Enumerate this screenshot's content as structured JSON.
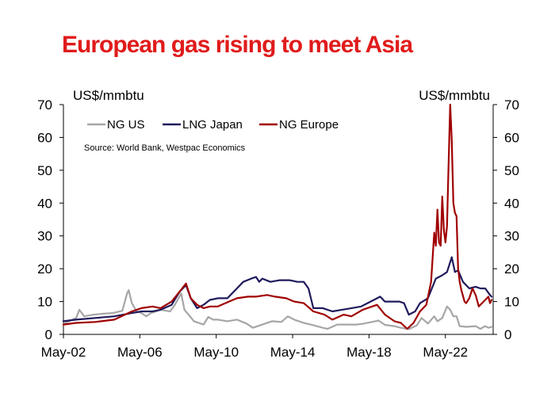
{
  "chart_data": {
    "type": "line",
    "title": "European gas rising to meet Asia",
    "ylabel_left": "US$/mmbtu",
    "ylabel_right": "US$/mmbtu",
    "source": "Source: World Bank, Westpac Economics",
    "ylim": [
      0,
      70
    ],
    "yticks": [
      0,
      10,
      20,
      30,
      40,
      50,
      60,
      70
    ],
    "xlim": [
      "2002-05",
      "2024-11"
    ],
    "x_tick_labels": [
      "May-02",
      "May-06",
      "May-10",
      "May-14",
      "May-18",
      "May-22"
    ],
    "x_tick_dates": [
      "2002-05",
      "2006-05",
      "2010-05",
      "2014-05",
      "2018-05",
      "2022-05"
    ],
    "grid": false,
    "legend": "top-left",
    "series": [
      {
        "name": "NG US",
        "color": "#a6a6a6",
        "points": [
          [
            "2002-05",
            3.2
          ],
          [
            "2003-01",
            5.0
          ],
          [
            "2003-03",
            7.5
          ],
          [
            "2003-06",
            5.5
          ],
          [
            "2003-12",
            6.0
          ],
          [
            "2004-06",
            6.3
          ],
          [
            "2004-12",
            6.5
          ],
          [
            "2005-06",
            7.2
          ],
          [
            "2005-09",
            12.5
          ],
          [
            "2005-10",
            13.5
          ],
          [
            "2005-12",
            9.5
          ],
          [
            "2006-03",
            7.0
          ],
          [
            "2006-06",
            6.5
          ],
          [
            "2006-09",
            5.5
          ],
          [
            "2006-12",
            6.5
          ],
          [
            "2007-06",
            7.5
          ],
          [
            "2007-12",
            7.0
          ],
          [
            "2008-03",
            9.0
          ],
          [
            "2008-07",
            12.5
          ],
          [
            "2008-09",
            7.5
          ],
          [
            "2008-12",
            5.8
          ],
          [
            "2009-03",
            4.0
          ],
          [
            "2009-09",
            3.0
          ],
          [
            "2009-12",
            5.3
          ],
          [
            "2010-03",
            4.5
          ],
          [
            "2010-06",
            4.5
          ],
          [
            "2010-12",
            4.0
          ],
          [
            "2011-06",
            4.5
          ],
          [
            "2011-12",
            3.3
          ],
          [
            "2012-04",
            2.0
          ],
          [
            "2012-10",
            3.0
          ],
          [
            "2013-04",
            4.0
          ],
          [
            "2013-10",
            3.8
          ],
          [
            "2014-02",
            5.5
          ],
          [
            "2014-06",
            4.5
          ],
          [
            "2014-12",
            3.5
          ],
          [
            "2015-06",
            2.8
          ],
          [
            "2015-12",
            2.0
          ],
          [
            "2016-03",
            1.7
          ],
          [
            "2016-09",
            3.0
          ],
          [
            "2017-03",
            3.0
          ],
          [
            "2017-09",
            3.0
          ],
          [
            "2018-01",
            3.2
          ],
          [
            "2018-11",
            4.2
          ],
          [
            "2019-03",
            2.9
          ],
          [
            "2019-09",
            2.5
          ],
          [
            "2020-01",
            2.0
          ],
          [
            "2020-06",
            1.6
          ],
          [
            "2020-11",
            2.7
          ],
          [
            "2021-02",
            5.0
          ],
          [
            "2021-06",
            3.3
          ],
          [
            "2021-10",
            5.5
          ],
          [
            "2021-12",
            4.0
          ],
          [
            "2022-03",
            5.0
          ],
          [
            "2022-06",
            8.5
          ],
          [
            "2022-08",
            7.5
          ],
          [
            "2022-10",
            5.5
          ],
          [
            "2022-12",
            5.5
          ],
          [
            "2023-02",
            2.5
          ],
          [
            "2023-06",
            2.3
          ],
          [
            "2023-12",
            2.5
          ],
          [
            "2024-03",
            1.7
          ],
          [
            "2024-06",
            2.5
          ],
          [
            "2024-08",
            2.0
          ],
          [
            "2024-10",
            2.3
          ]
        ]
      },
      {
        "name": "LNG Japan",
        "color": "#1f1a5c",
        "points": [
          [
            "2002-05",
            4.0
          ],
          [
            "2003-01",
            4.5
          ],
          [
            "2004-01",
            5.0
          ],
          [
            "2005-01",
            5.5
          ],
          [
            "2005-12",
            6.5
          ],
          [
            "2006-06",
            7.0
          ],
          [
            "2007-01",
            7.0
          ],
          [
            "2007-06",
            7.5
          ],
          [
            "2008-01",
            9.0
          ],
          [
            "2008-06",
            13.0
          ],
          [
            "2008-10",
            15.0
          ],
          [
            "2009-01",
            11.0
          ],
          [
            "2009-05",
            8.0
          ],
          [
            "2009-09",
            9.0
          ],
          [
            "2010-01",
            10.5
          ],
          [
            "2010-06",
            11.0
          ],
          [
            "2010-12",
            11.0
          ],
          [
            "2011-06",
            14.0
          ],
          [
            "2011-10",
            16.0
          ],
          [
            "2012-03",
            17.0
          ],
          [
            "2012-06",
            17.5
          ],
          [
            "2012-08",
            16.0
          ],
          [
            "2012-10",
            17.0
          ],
          [
            "2013-03",
            16.0
          ],
          [
            "2013-09",
            16.5
          ],
          [
            "2014-03",
            16.5
          ],
          [
            "2014-08",
            16.0
          ],
          [
            "2014-12",
            16.0
          ],
          [
            "2015-03",
            14.0
          ],
          [
            "2015-06",
            8.0
          ],
          [
            "2015-12",
            8.0
          ],
          [
            "2016-06",
            7.0
          ],
          [
            "2016-12",
            7.5
          ],
          [
            "2017-06",
            8.0
          ],
          [
            "2017-12",
            8.5
          ],
          [
            "2018-06",
            10.0
          ],
          [
            "2018-12",
            11.5
          ],
          [
            "2019-03",
            10.0
          ],
          [
            "2019-12",
            10.0
          ],
          [
            "2020-03",
            9.5
          ],
          [
            "2020-06",
            6.0
          ],
          [
            "2020-10",
            7.0
          ],
          [
            "2021-01",
            9.5
          ],
          [
            "2021-06",
            11.0
          ],
          [
            "2021-11",
            17.0
          ],
          [
            "2022-03",
            18.0
          ],
          [
            "2022-06",
            19.0
          ],
          [
            "2022-09",
            23.5
          ],
          [
            "2022-11",
            19.0
          ],
          [
            "2023-01",
            19.5
          ],
          [
            "2023-04",
            16.0
          ],
          [
            "2023-08",
            14.0
          ],
          [
            "2023-12",
            14.5
          ],
          [
            "2024-03",
            14.0
          ],
          [
            "2024-06",
            14.0
          ],
          [
            "2024-09",
            12.0
          ],
          [
            "2024-10",
            11.5
          ]
        ]
      },
      {
        "name": "NG Europe",
        "color": "#a00000",
        "points": [
          [
            "2002-05",
            3.0
          ],
          [
            "2003-01",
            3.5
          ],
          [
            "2004-01",
            3.8
          ],
          [
            "2005-01",
            4.5
          ],
          [
            "2005-12",
            7.0
          ],
          [
            "2006-06",
            8.0
          ],
          [
            "2007-01",
            8.5
          ],
          [
            "2007-06",
            8.0
          ],
          [
            "2008-01",
            10.0
          ],
          [
            "2008-06",
            13.0
          ],
          [
            "2008-10",
            15.5
          ],
          [
            "2009-01",
            11.0
          ],
          [
            "2009-05",
            9.0
          ],
          [
            "2009-09",
            8.0
          ],
          [
            "2010-01",
            8.5
          ],
          [
            "2010-06",
            8.5
          ],
          [
            "2011-01",
            10.0
          ],
          [
            "2011-06",
            11.0
          ],
          [
            "2012-01",
            11.5
          ],
          [
            "2012-06",
            11.5
          ],
          [
            "2013-01",
            12.0
          ],
          [
            "2013-06",
            11.5
          ],
          [
            "2014-01",
            11.0
          ],
          [
            "2014-06",
            10.0
          ],
          [
            "2014-12",
            9.5
          ],
          [
            "2015-06",
            7.0
          ],
          [
            "2016-01",
            6.0
          ],
          [
            "2016-06",
            4.5
          ],
          [
            "2017-01",
            6.0
          ],
          [
            "2017-06",
            5.5
          ],
          [
            "2018-01",
            7.5
          ],
          [
            "2018-10",
            9.0
          ],
          [
            "2019-03",
            6.0
          ],
          [
            "2019-09",
            4.0
          ],
          [
            "2020-01",
            3.5
          ],
          [
            "2020-05",
            1.7
          ],
          [
            "2020-09",
            3.5
          ],
          [
            "2021-01",
            7.0
          ],
          [
            "2021-05",
            9.0
          ],
          [
            "2021-08",
            16.0
          ],
          [
            "2021-10",
            31.0
          ],
          [
            "2021-11",
            27.0
          ],
          [
            "2021-12",
            38.0
          ],
          [
            "2022-01",
            28.0
          ],
          [
            "2022-02",
            27.0
          ],
          [
            "2022-03",
            42.0
          ],
          [
            "2022-04",
            32.0
          ],
          [
            "2022-05",
            28.0
          ],
          [
            "2022-06",
            33.0
          ],
          [
            "2022-07",
            52.0
          ],
          [
            "2022-08",
            70.0
          ],
          [
            "2022-09",
            59.0
          ],
          [
            "2022-10",
            40.0
          ],
          [
            "2022-11",
            37.0
          ],
          [
            "2022-12",
            36.0
          ],
          [
            "2023-01",
            20.0
          ],
          [
            "2023-02",
            16.0
          ],
          [
            "2023-03",
            13.5
          ],
          [
            "2023-05",
            10.0
          ],
          [
            "2023-06",
            9.5
          ],
          [
            "2023-08",
            11.0
          ],
          [
            "2023-10",
            14.0
          ],
          [
            "2023-12",
            12.0
          ],
          [
            "2024-02",
            8.5
          ],
          [
            "2024-04",
            9.5
          ],
          [
            "2024-06",
            10.5
          ],
          [
            "2024-08",
            11.5
          ],
          [
            "2024-09",
            9.5
          ],
          [
            "2024-10",
            10.5
          ]
        ]
      }
    ]
  },
  "colors": {
    "title": "#e01b1b",
    "axis": "#000000"
  }
}
